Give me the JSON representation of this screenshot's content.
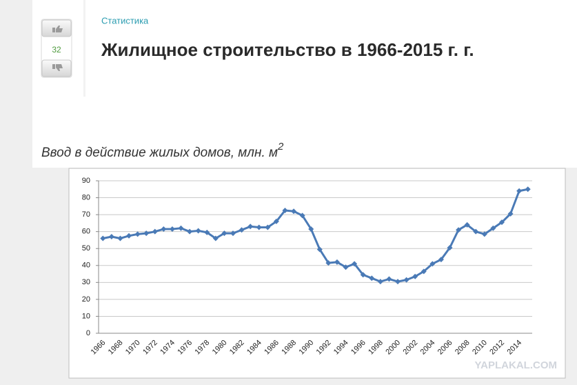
{
  "article": {
    "category": "Статистика",
    "title": "Жилищное строительство в 1966-2015 г. г.",
    "votes": "32",
    "caption": "Ввод в действие жилых домов, млн. м",
    "caption_superscript": "2",
    "watermark": "YAPLAKAL.COM"
  },
  "chart_data": {
    "type": "line",
    "color": "#4a7ab6",
    "grid": true,
    "categories": [
      "1966",
      null,
      "1968",
      null,
      "1970",
      null,
      "1972",
      null,
      "1974",
      null,
      "1976",
      null,
      "1978",
      null,
      "1980",
      null,
      "1982",
      null,
      "1984",
      null,
      "1986",
      null,
      "1988",
      null,
      "1990",
      null,
      "1992",
      null,
      "1994",
      null,
      "1996",
      null,
      "1998",
      null,
      "2000",
      null,
      "2002",
      null,
      "2004",
      null,
      "2006",
      null,
      "2008",
      null,
      "2010",
      null,
      "2012",
      null,
      "2014",
      null
    ],
    "values": [
      56,
      57,
      56,
      57.5,
      58.5,
      59,
      60,
      61.5,
      61.5,
      62,
      60,
      60.5,
      59.5,
      56,
      59,
      59,
      61,
      63,
      62.5,
      62.5,
      66,
      72.5,
      72,
      69.5,
      61.5,
      49.5,
      41.5,
      42,
      39,
      41,
      34.5,
      32.5,
      30.5,
      32,
      30.5,
      31.5,
      33.5,
      36.5,
      41,
      43.5,
      50.5,
      61,
      64,
      60,
      58.5,
      62,
      65.5,
      70.5,
      84,
      85
    ],
    "ylim": [
      0,
      90
    ],
    "yticks": [
      0,
      10,
      20,
      30,
      40,
      50,
      60,
      70,
      80,
      90
    ]
  }
}
